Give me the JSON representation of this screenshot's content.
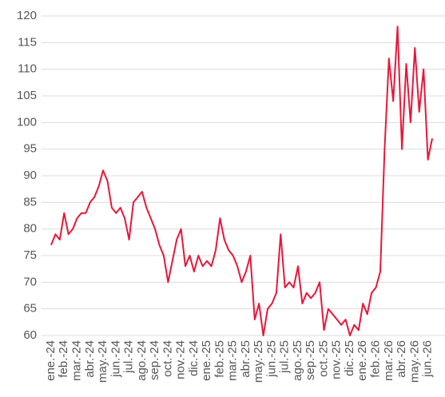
{
  "chart_data": {
    "type": "line",
    "categories": [
      "ene.-24",
      null,
      null,
      "feb.-24",
      null,
      null,
      "mar.-24",
      null,
      null,
      "abr.-24",
      null,
      null,
      "may.-24",
      null,
      null,
      "jun.-24",
      null,
      null,
      "jul.-24",
      null,
      null,
      "ago.-24",
      null,
      null,
      "sep.-24",
      null,
      null,
      "oct.-24",
      null,
      null,
      "nov.-24",
      null,
      null,
      "dic.-24",
      null,
      null,
      "ene.-25",
      null,
      null,
      "feb.-25",
      null,
      null,
      "mar.-25",
      null,
      null,
      "abr.-25",
      null,
      null,
      "may.-25",
      null,
      null,
      "jun.-25",
      null,
      null,
      "jul.-25",
      null,
      null,
      "ago.-25",
      null,
      null,
      "sep.-25",
      null,
      null,
      "oct.-25",
      null,
      null,
      "nov.-25",
      null,
      null,
      "dic.-25",
      null,
      null,
      "ene.-26",
      null,
      null,
      "feb.-26",
      null,
      null,
      "mar.-26",
      null,
      null,
      "abr.-26",
      null,
      null,
      "may.-26",
      null,
      null,
      "jun.-26",
      null
    ],
    "values": [
      77,
      79,
      78,
      83,
      79,
      80,
      82,
      83,
      83,
      85,
      86,
      88,
      91,
      89,
      84,
      83,
      84,
      82,
      78,
      85,
      86,
      87,
      84,
      82,
      80,
      77,
      75,
      70,
      74,
      78,
      80,
      73,
      75,
      72,
      75,
      73,
      74,
      73,
      76,
      82,
      78,
      76,
      75,
      73,
      70,
      72,
      75,
      63,
      66,
      60,
      65,
      66,
      68,
      79,
      69,
      70,
      69,
      73,
      66,
      68,
      67,
      68,
      70,
      61,
      65,
      64,
      63,
      62,
      63,
      60,
      62,
      61,
      66,
      64,
      68,
      69,
      72,
      95,
      112,
      104,
      118,
      95,
      111,
      100,
      114,
      102,
      110,
      93,
      97
    ],
    "color": "#e8173a",
    "ylim": [
      60,
      120
    ],
    "yticks": [
      60,
      65,
      70,
      75,
      80,
      85,
      90,
      95,
      100,
      105,
      110,
      115,
      120
    ],
    "grid": true
  }
}
